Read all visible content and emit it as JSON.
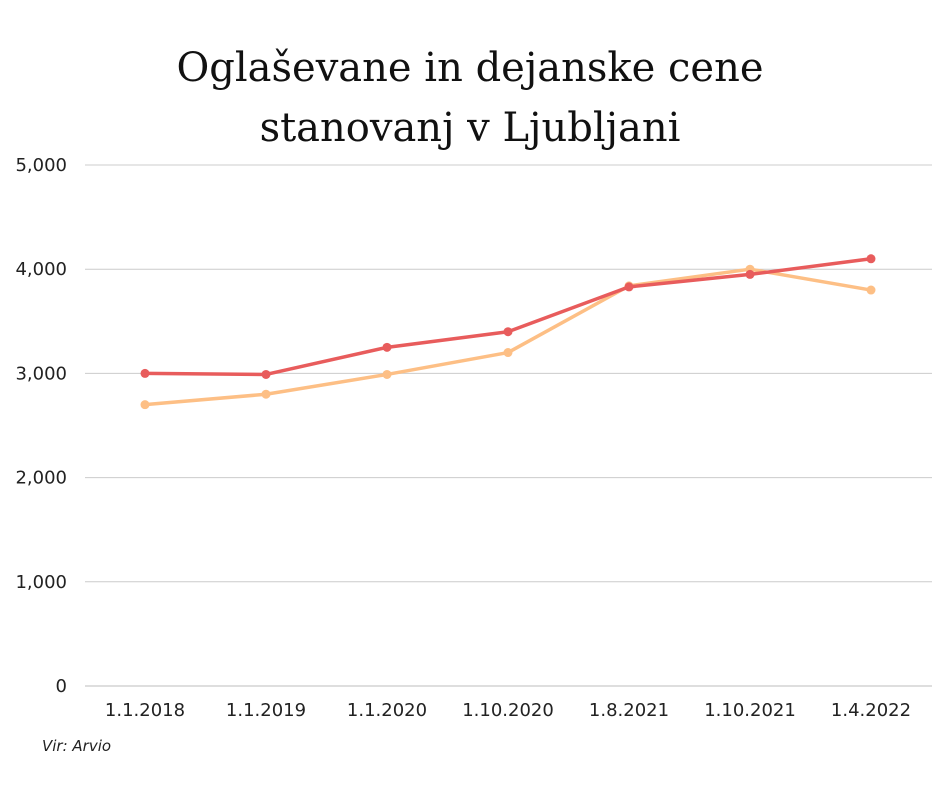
{
  "chart_data": {
    "type": "line",
    "title_lines": [
      "Oglaševane in dejanske cene",
      "stanovanj v Ljubljani"
    ],
    "xlabel": "",
    "ylabel": "",
    "categories": [
      "1.1.2018",
      "1.1.2019",
      "1.1.2020",
      "1.10.2020",
      "1.8.2021",
      "1.10.2021",
      "1.4.2022"
    ],
    "ylim": [
      0,
      5000
    ],
    "yticks": [
      "0",
      "1,000",
      "2,000",
      "3,000",
      "4,000",
      "5,000"
    ],
    "ytick_values": [
      0,
      1000,
      2000,
      3000,
      4000,
      5000
    ],
    "grid": true,
    "legend": "none",
    "series": [
      {
        "color": "#e85c5c",
        "values": [
          3000,
          2990,
          3250,
          3400,
          3830,
          3950,
          4100
        ]
      },
      {
        "color": "#fdbf85",
        "values": [
          2700,
          2800,
          2990,
          3200,
          3840,
          4000,
          3800
        ]
      }
    ],
    "source": "Vir: Arvio"
  }
}
